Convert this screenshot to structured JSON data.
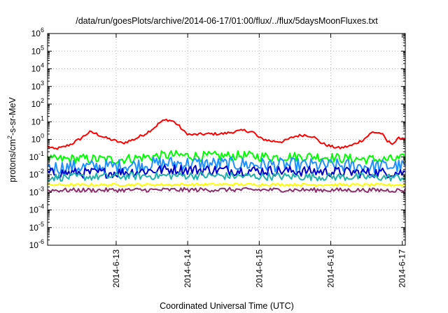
{
  "chart_data": {
    "type": "line",
    "title": "/data/run/goesPlots/archive/2014-06-17/01:00/flux/../flux/5daysMoonFluxes.txt",
    "xlabel": "Coordinated Universal Time (UTC)",
    "ylabel": "protons/cm²-s-sr-MeV",
    "ylabel_parts": {
      "pre": "protons/cm",
      "sup": "2",
      "post": "-s-sr-MeV"
    },
    "x_scale": "time",
    "y_scale": "log",
    "xlim": [
      "2014-06-12T01:00",
      "2014-06-17T01:00"
    ],
    "ylim": [
      1e-06,
      1000000.0
    ],
    "grid": true,
    "x_ticks": [
      {
        "label": "2014-6-13",
        "value": "2014-06-13T00:00"
      },
      {
        "label": "2014-6-14",
        "value": "2014-06-14T00:00"
      },
      {
        "label": "2014-6-15",
        "value": "2014-06-15T00:00"
      },
      {
        "label": "2014-6-16",
        "value": "2014-06-16T00:00"
      },
      {
        "label": "2014-6-17",
        "value": "2014-06-17T00:00"
      }
    ],
    "y_ticks": [
      {
        "base": "10",
        "exp": "-6",
        "value": 1e-06
      },
      {
        "base": "10",
        "exp": "-5",
        "value": 1e-05
      },
      {
        "base": "10",
        "exp": "-4",
        "value": 0.0001
      },
      {
        "base": "10",
        "exp": "-3",
        "value": 0.001
      },
      {
        "base": "10",
        "exp": "-2",
        "value": 0.01
      },
      {
        "base": "10",
        "exp": "-1",
        "value": 0.1
      },
      {
        "base": "10",
        "exp": "0",
        "value": 1
      },
      {
        "base": "10",
        "exp": "1",
        "value": 10
      },
      {
        "base": "10",
        "exp": "2",
        "value": 100
      },
      {
        "base": "10",
        "exp": "3",
        "value": 1000
      },
      {
        "base": "10",
        "exp": "4",
        "value": 10000
      },
      {
        "base": "10",
        "exp": "5",
        "value": 100000
      },
      {
        "base": "10",
        "exp": "6",
        "value": 1000000
      }
    ],
    "series": [
      {
        "color": "#ff0000",
        "base_points": [
          [
            "2014-06-12T01:00",
            0.4
          ],
          [
            "2014-06-12T03:00",
            0.28
          ],
          [
            "2014-06-12T06:00",
            0.35
          ],
          [
            "2014-06-12T09:00",
            0.55
          ],
          [
            "2014-06-12T12:00",
            1.1
          ],
          [
            "2014-06-12T15:00",
            2.6
          ],
          [
            "2014-06-12T17:00",
            2.2
          ],
          [
            "2014-06-12T20:00",
            1.3
          ],
          [
            "2014-06-13T00:00",
            0.8
          ],
          [
            "2014-06-13T02:00",
            0.6
          ],
          [
            "2014-06-13T06:00",
            1.0
          ],
          [
            "2014-06-13T10:00",
            2.2
          ],
          [
            "2014-06-13T13:00",
            5.0
          ],
          [
            "2014-06-13T15:00",
            10
          ],
          [
            "2014-06-13T17:00",
            13
          ],
          [
            "2014-06-13T19:00",
            11
          ],
          [
            "2014-06-13T21:00",
            6
          ],
          [
            "2014-06-13T23:00",
            2.5
          ],
          [
            "2014-06-14T01:00",
            1.8
          ],
          [
            "2014-06-14T06:00",
            2.0
          ],
          [
            "2014-06-14T12:00",
            2.1
          ],
          [
            "2014-06-14T16:00",
            2.8
          ],
          [
            "2014-06-14T19:00",
            3.2
          ],
          [
            "2014-06-14T22:00",
            2.6
          ],
          [
            "2014-06-15T00:00",
            1.2
          ],
          [
            "2014-06-15T04:00",
            0.8
          ],
          [
            "2014-06-15T08:00",
            0.75
          ],
          [
            "2014-06-15T12:00",
            1.5
          ],
          [
            "2014-06-15T15:00",
            1.8
          ],
          [
            "2014-06-15T18:00",
            1.5
          ],
          [
            "2014-06-15T21:00",
            0.6
          ],
          [
            "2014-06-16T00:00",
            0.4
          ],
          [
            "2014-06-16T03:00",
            0.32
          ],
          [
            "2014-06-16T07:00",
            0.45
          ],
          [
            "2014-06-16T11:00",
            1.0
          ],
          [
            "2014-06-16T14:00",
            2.6
          ],
          [
            "2014-06-16T17:00",
            2.2
          ],
          [
            "2014-06-16T19:00",
            0.75
          ],
          [
            "2014-06-16T21:00",
            0.6
          ],
          [
            "2014-06-16T23:00",
            1.2
          ],
          [
            "2014-06-17T01:00",
            1.2
          ]
        ],
        "noise": 0.08
      },
      {
        "color": "#00ff00",
        "base_points": [
          [
            "2014-06-12T01:00",
            0.07
          ],
          [
            "2014-06-12T12:00",
            0.08
          ],
          [
            "2014-06-13T00:00",
            0.07
          ],
          [
            "2014-06-13T18:00",
            0.13
          ],
          [
            "2014-06-14T06:00",
            0.11
          ],
          [
            "2014-06-14T18:00",
            0.12
          ],
          [
            "2014-06-15T06:00",
            0.1
          ],
          [
            "2014-06-15T18:00",
            0.11
          ],
          [
            "2014-06-16T06:00",
            0.08
          ],
          [
            "2014-06-16T18:00",
            0.07
          ],
          [
            "2014-06-17T01:00",
            0.08
          ]
        ],
        "noise": 0.28
      },
      {
        "color": "#1e90ff",
        "base_points": [
          [
            "2014-06-12T01:00",
            0.025
          ],
          [
            "2014-06-13T00:00",
            0.03
          ],
          [
            "2014-06-13T18:00",
            0.045
          ],
          [
            "2014-06-14T12:00",
            0.04
          ],
          [
            "2014-06-15T12:00",
            0.035
          ],
          [
            "2014-06-16T12:00",
            0.03
          ],
          [
            "2014-06-17T01:00",
            0.03
          ]
        ],
        "noise": 0.4
      },
      {
        "color": "#0000cd",
        "base_points": [
          [
            "2014-06-12T01:00",
            0.012
          ],
          [
            "2014-06-13T00:00",
            0.013
          ],
          [
            "2014-06-13T18:00",
            0.02
          ],
          [
            "2014-06-14T12:00",
            0.018
          ],
          [
            "2014-06-15T12:00",
            0.016
          ],
          [
            "2014-06-16T12:00",
            0.013
          ],
          [
            "2014-06-17T01:00",
            0.013
          ]
        ],
        "noise": 0.3
      },
      {
        "color": "#20b2aa",
        "base_points": [
          [
            "2014-06-12T01:00",
            0.007
          ],
          [
            "2014-06-13T00:00",
            0.008
          ],
          [
            "2014-06-14T00:00",
            0.009
          ],
          [
            "2014-06-15T00:00",
            0.008
          ],
          [
            "2014-06-16T00:00",
            0.0075
          ],
          [
            "2014-06-17T01:00",
            0.007
          ]
        ],
        "noise": 0.22
      },
      {
        "color": "#ffff00",
        "base_points": [
          [
            "2014-06-12T01:00",
            0.0026
          ],
          [
            "2014-06-14T12:00",
            0.0028
          ],
          [
            "2014-06-17T01:00",
            0.0026
          ]
        ],
        "noise": 0.07
      },
      {
        "color": "#8b2f6b",
        "base_points": [
          [
            "2014-06-12T01:00",
            0.0013
          ],
          [
            "2014-06-14T12:00",
            0.0014
          ],
          [
            "2014-06-17T01:00",
            0.0013
          ]
        ],
        "noise": 0.12
      }
    ]
  }
}
